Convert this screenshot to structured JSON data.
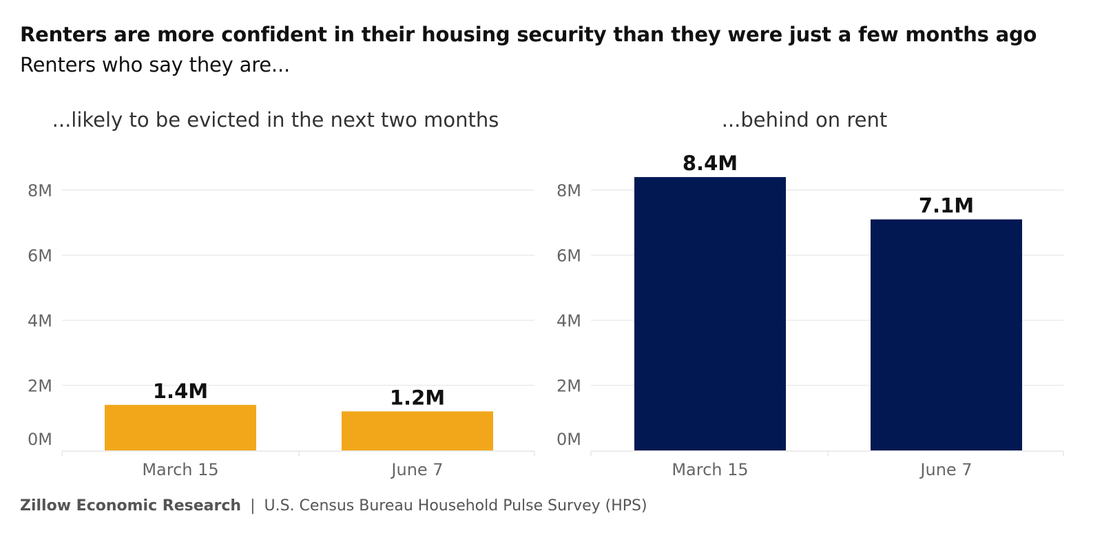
{
  "title": "Renters are more confident in their housing security than they were just a few months ago",
  "subtitle": "Renters who say they are...",
  "footer": {
    "brand": "Zillow Economic Research",
    "separator": "|",
    "source": "U.S. Census Bureau Household Pulse Survey (HPS)"
  },
  "chart_data": [
    {
      "type": "bar",
      "title": "...likely to be evicted in the next two months",
      "categories": [
        "March 15",
        "June 7"
      ],
      "values": [
        1.4,
        1.2
      ],
      "value_labels": [
        "1.4M",
        "1.2M"
      ],
      "unit": "M",
      "ylim": [
        0,
        8
      ],
      "yticks": [
        0,
        2,
        4,
        6,
        8
      ],
      "ytick_labels": [
        "0M",
        "2M",
        "4M",
        "6M",
        "8M"
      ],
      "grid": true,
      "color": "#F2A71B"
    },
    {
      "type": "bar",
      "title": "...behind on rent",
      "categories": [
        "March 15",
        "June 7"
      ],
      "values": [
        8.4,
        7.1
      ],
      "value_labels": [
        "8.4M",
        "7.1M"
      ],
      "unit": "M",
      "ylim": [
        0,
        8
      ],
      "yticks": [
        0,
        2,
        4,
        6,
        8
      ],
      "ytick_labels": [
        "0M",
        "2M",
        "4M",
        "6M",
        "8M"
      ],
      "grid": true,
      "color": "#021852"
    }
  ],
  "colors": {
    "grid": "#EBEBEB",
    "axis": "#E6E6E6",
    "tick_text": "#666666",
    "panel_title": "#333333",
    "label_text": "#111111"
  }
}
